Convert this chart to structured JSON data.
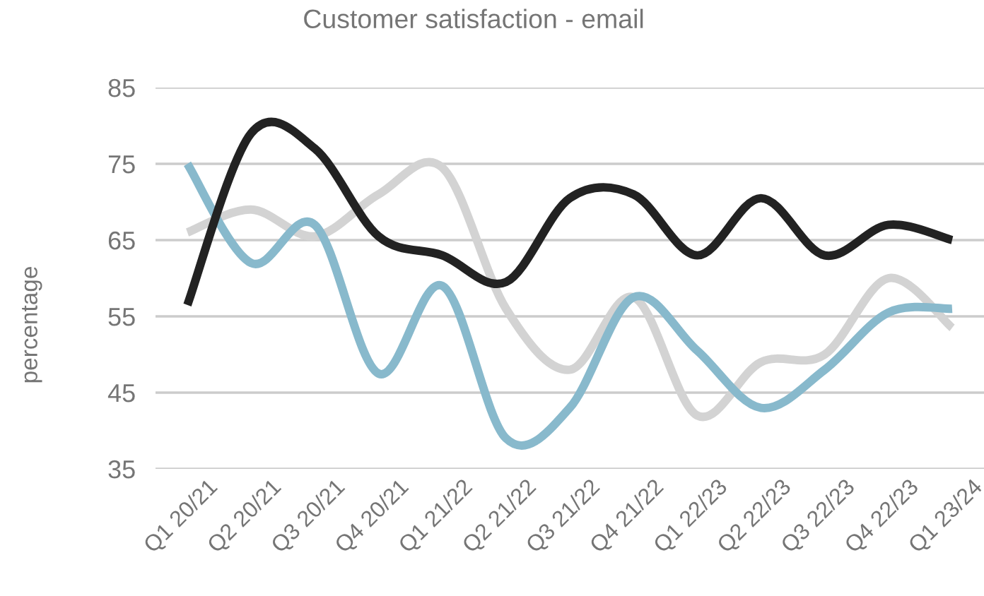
{
  "chart_data": {
    "type": "line",
    "title": "Customer satisfaction - email",
    "ylabel": "percentage",
    "categories": [
      "Q1 20/21",
      "Q2 20/21",
      "Q3 20/21",
      "Q4 20/21",
      "Q1 21/22",
      "Q2 21/22",
      "Q3 21/22",
      "Q4 21/22",
      "Q1 22/23",
      "Q2 22/23",
      "Q3 22/23",
      "Q4 22/23",
      "Q1 23/24"
    ],
    "series": [
      {
        "color": "#d3d3d3",
        "values": [
          66,
          69,
          65.5,
          71,
          74.5,
          56,
          48,
          57.5,
          42,
          49,
          50,
          60,
          53.5
        ]
      },
      {
        "color": "#88b9cc",
        "values": [
          75,
          62,
          67,
          47.5,
          59,
          39,
          43,
          57.5,
          50.5,
          43,
          48,
          55.5,
          56
        ]
      },
      {
        "color": "#222222",
        "values": [
          56.5,
          79,
          77,
          65.5,
          63,
          59.5,
          70.5,
          71,
          63,
          70.5,
          63,
          67,
          65
        ]
      }
    ],
    "ylim": [
      35,
      85
    ],
    "yticks": [
      35,
      45,
      55,
      65,
      75,
      85
    ],
    "grid": "y",
    "line_style": "solid"
  }
}
